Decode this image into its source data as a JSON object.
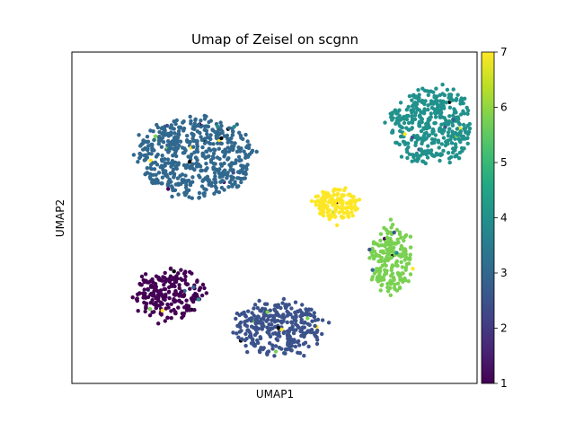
{
  "chart_data": {
    "type": "scatter",
    "title": "Umap of Zeisel on scgnn",
    "xlabel": "UMAP1",
    "ylabel": "UMAP2",
    "x_ticks_shown": false,
    "y_ticks_shown": false,
    "grid": false,
    "colormap": "viridis",
    "colorbar": {
      "min": 1,
      "max": 7,
      "ticks": [
        "1",
        "2",
        "3",
        "4",
        "5",
        "6",
        "7"
      ],
      "placement": "right"
    },
    "clusters": [
      {
        "value": 3,
        "label_color": "#31688e",
        "center": [
          4.5,
          7.7
        ],
        "spread": [
          2.5,
          1.55
        ],
        "count": 560
      },
      {
        "value": 4,
        "label_color": "#21918c",
        "center": [
          15.0,
          8.9
        ],
        "spread": [
          1.9,
          1.45
        ],
        "count": 400
      },
      {
        "value": 7,
        "label_color": "#fde725",
        "center": [
          10.7,
          5.8
        ],
        "spread": [
          0.9,
          0.6
        ],
        "count": 150
      },
      {
        "value": 6,
        "label_color": "#7ad151",
        "center": [
          13.2,
          3.7
        ],
        "spread": [
          0.9,
          1.3
        ],
        "count": 200
      },
      {
        "value": 1,
        "label_color": "#440154",
        "center": [
          3.3,
          2.3
        ],
        "spread": [
          1.6,
          0.9
        ],
        "count": 230
      },
      {
        "value": 2,
        "label_color": "#3b528b",
        "center": [
          8.2,
          1.0
        ],
        "spread": [
          1.9,
          1.0
        ],
        "count": 320
      }
    ],
    "x_range": [
      -1,
      17
    ],
    "y_range": [
      -1.2,
      11.8
    ]
  }
}
